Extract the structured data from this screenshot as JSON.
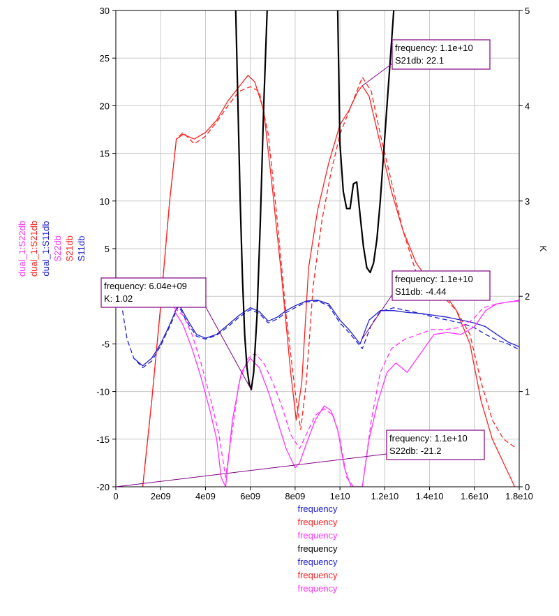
{
  "chart_data": {
    "type": "line",
    "x_axis": {
      "label": "frequency",
      "range": [
        0,
        18000000000
      ],
      "ticks": [
        0,
        2000000000.0,
        4000000000.0,
        6000000000.0,
        8000000000.0,
        10000000000.0,
        12000000000.0,
        14000000000.0,
        16000000000.0,
        18000000000.0
      ],
      "tick_labels": [
        "0",
        "2e09",
        "4e09",
        "6e09",
        "8e09",
        "1e10",
        "1.2e10",
        "1.4e10",
        "1.6e10",
        "1.8e10"
      ]
    },
    "y_left": {
      "range": [
        -20,
        30
      ],
      "ticks": [
        -20,
        -15,
        -10,
        -5,
        0,
        5,
        10,
        15,
        20,
        25,
        30
      ],
      "tick_labels": [
        "-20",
        "-15",
        "-10",
        "-5",
        "0",
        "5",
        "10",
        "15",
        "20",
        "25",
        "30"
      ]
    },
    "y_right": {
      "label": "K",
      "range": [
        0,
        5
      ],
      "ticks": [
        0,
        1,
        2,
        3,
        4,
        5
      ],
      "tick_labels": [
        "0",
        "1",
        "2",
        "3",
        "4",
        "5"
      ]
    },
    "grid": true,
    "left_legend": [
      {
        "name": "dual_1:S22db",
        "color": "#ff33ff"
      },
      {
        "name": "dual_1:S21db",
        "color": "#ff2020"
      },
      {
        "name": "dual_1:S11db",
        "color": "#2020d0"
      },
      {
        "name": "S22db",
        "color": "#ff33ff"
      },
      {
        "name": "S21db",
        "color": "#ff2020"
      },
      {
        "name": "S11db",
        "color": "#2020d0"
      }
    ],
    "x_labels": [
      {
        "text": "frequency",
        "color": "#2020d0"
      },
      {
        "text": "frequency",
        "color": "#ff2020"
      },
      {
        "text": "frequency",
        "color": "#ff33ff"
      },
      {
        "text": "frequency",
        "color": "#000000"
      },
      {
        "text": "frequency",
        "color": "#2020d0"
      },
      {
        "text": "frequency",
        "color": "#ff2020"
      },
      {
        "text": "frequency",
        "color": "#ff33ff"
      }
    ],
    "series": [
      {
        "name": "S21db",
        "axis": "left",
        "color": "#ff2020",
        "dash": false,
        "x": [
          1200000000.0,
          1600000000.0,
          2000000000.0,
          2400000000.0,
          2700000000.0,
          3000000000.0,
          3500000000.0,
          4000000000.0,
          4500000000.0,
          5000000000.0,
          5500000000.0,
          5900000000.0,
          6200000000.0,
          6600000000.0,
          7000000000.0,
          7400000000.0,
          7800000000.0,
          8050000000.0,
          8300000000.0,
          8600000000.0,
          9000000000.0,
          9500000000.0,
          10000000000.0,
          10400000000.0,
          10800000000.0,
          11000000000.0,
          11300000000.0,
          11800000000.0,
          12300000000.0,
          12800000000.0,
          13400000000.0,
          14000000000.0,
          14600000000.0,
          15200000000.0,
          15800000000.0,
          16300000000.0,
          16800000000.0,
          17300000000.0,
          17800000000.0
        ],
        "y": [
          -20,
          -11,
          -1,
          10,
          16.5,
          17,
          16.5,
          17.2,
          18.5,
          20.5,
          22,
          23.2,
          22.5,
          19.5,
          11,
          2,
          -8,
          -13,
          -9,
          3,
          9,
          14,
          18,
          19.5,
          21.5,
          22.1,
          21,
          16,
          11,
          7,
          3.5,
          1.5,
          0.5,
          -1.5,
          -5,
          -11,
          -15,
          -17.5,
          -20
        ]
      },
      {
        "name": "dual_1:S21db",
        "axis": "left",
        "color": "#ff2020",
        "dash": true,
        "x": [
          1200000000.0,
          1600000000.0,
          2000000000.0,
          2400000000.0,
          2700000000.0,
          3000000000.0,
          3500000000.0,
          4000000000.0,
          4500000000.0,
          5000000000.0,
          5500000000.0,
          6000000000.0,
          6400000000.0,
          6800000000.0,
          7200000000.0,
          7600000000.0,
          8000000000.0,
          8250000000.0,
          8500000000.0,
          8800000000.0,
          9200000000.0,
          9600000000.0,
          10000000000.0,
          10500000000.0,
          11000000000.0,
          11400000000.0,
          11800000000.0,
          12300000000.0,
          12800000000.0,
          13400000000.0,
          14000000000.0,
          14600000000.0,
          15200000000.0,
          15800000000.0,
          16300000000.0,
          16800000000.0,
          17300000000.0,
          17900000000.0
        ],
        "y": [
          -20,
          -11,
          -1,
          10,
          16.5,
          17.2,
          16,
          16.8,
          18.3,
          20,
          21.5,
          22,
          21.5,
          17,
          8,
          -2,
          -10,
          -14,
          -9,
          1,
          8,
          13,
          17,
          20,
          23,
          21.5,
          17,
          12,
          7,
          2.5,
          0.5,
          0,
          -1.5,
          -4,
          -9,
          -13,
          -15,
          -16
        ]
      },
      {
        "name": "S11db",
        "axis": "left",
        "color": "#2020d0",
        "dash": false,
        "x": [
          800000000.0,
          1200000000.0,
          1600000000.0,
          2000000000.0,
          2400000000.0,
          2800000000.0,
          3200000000.0,
          3600000000.0,
          4000000000.0,
          4500000000.0,
          5000000000.0,
          5500000000.0,
          6000000000.0,
          6400000000.0,
          6800000000.0,
          7200000000.0,
          7600000000.0,
          8000000000.0,
          8500000000.0,
          9000000000.0,
          9500000000.0,
          10000000000.0,
          10400000000.0,
          10900000000.0,
          11300000000.0,
          11800000000.0,
          12400000000.0,
          13000000000.0,
          13600000000.0,
          14200000000.0,
          14800000000.0,
          15400000000.0,
          16000000000.0,
          16500000000.0,
          17000000000.0,
          17500000000.0,
          18000000000.0
        ],
        "y": [
          -6.5,
          -7.3,
          -6.5,
          -5,
          -3,
          -0.8,
          -2.5,
          -4.0,
          -4.4,
          -4.0,
          -3.0,
          -2.0,
          -1.2,
          -1.6,
          -2.6,
          -2.2,
          -1.5,
          -1.0,
          -0.5,
          -0.4,
          -0.8,
          -2.5,
          -3.5,
          -5.0,
          -2.5,
          -1.5,
          -1.5,
          -1.7,
          -1.8,
          -2.0,
          -2.2,
          -2.5,
          -2.8,
          -3.2,
          -4.0,
          -4.8,
          -5.3
        ]
      },
      {
        "name": "dual_1:S11db",
        "axis": "left",
        "color": "#2020d0",
        "dash": true,
        "x": [
          300000000.0,
          500000000.0,
          800000000.0,
          1200000000.0,
          1600000000.0,
          2000000000.0,
          2400000000.0,
          2800000000.0,
          3200000000.0,
          3600000000.0,
          4000000000.0,
          4500000000.0,
          5000000000.0,
          5500000000.0,
          6000000000.0,
          6400000000.0,
          6800000000.0,
          7200000000.0,
          7600000000.0,
          8000000000.0,
          8500000000.0,
          9000000000.0,
          9500000000.0,
          10000000000.0,
          10400000000.0,
          11000000000.0,
          11400000000.0,
          11800000000.0,
          12400000000.0,
          13000000000.0,
          13600000000.0,
          14200000000.0,
          14800000000.0,
          15400000000.0,
          16000000000.0,
          16500000000.0,
          17000000000.0,
          17500000000.0,
          18000000000.0
        ],
        "y": [
          -1.5,
          -4.5,
          -6.5,
          -7.5,
          -6.8,
          -5.2,
          -3.2,
          -1.0,
          -2.8,
          -4.2,
          -4.5,
          -4.1,
          -3.2,
          -2.2,
          -1.4,
          -1.8,
          -2.8,
          -2.4,
          -1.7,
          -1.2,
          -0.6,
          -0.5,
          -1.0,
          -2.8,
          -3.8,
          -5.5,
          -3.0,
          -1.6,
          -1.2,
          -1.5,
          -1.8,
          -2.2,
          -2.5,
          -2.8,
          -3.3,
          -4.0,
          -4.6,
          -5.0,
          -5.6
        ]
      },
      {
        "name": "S22db",
        "axis": "left",
        "color": "#ff33ff",
        "dash": false,
        "x": [
          2600000000.0,
          3000000000.0,
          3400000000.0,
          3800000000.0,
          4200000000.0,
          4500000000.0,
          4700000000.0,
          4900000000.0,
          5200000000.0,
          5600000000.0,
          6000000000.0,
          6400000000.0,
          6800000000.0,
          7200000000.0,
          7600000000.0,
          8000000000.0,
          8200000000.0,
          8500000000.0,
          8900000000.0,
          9300000000.0,
          9600000000.0,
          9900000000.0,
          10200000000.0,
          10500000000.0,
          10800000000.0,
          11000000000.0,
          11300000000.0,
          11700000000.0,
          12100000000.0,
          12500000000.0,
          13000000000.0,
          13600000000.0,
          14200000000.0,
          14800000000.0,
          15400000000.0,
          16000000000.0,
          16500000000.0,
          17000000000.0,
          17500000000.0,
          18000000000.0
        ],
        "y": [
          -1.5,
          -3,
          -5.5,
          -8.5,
          -12,
          -15,
          -19,
          -20,
          -13,
          -8,
          -6.5,
          -7.5,
          -10,
          -13,
          -16,
          -18,
          -17.5,
          -15.5,
          -13,
          -11.5,
          -12,
          -14,
          -18,
          -20,
          -20,
          -20,
          -15,
          -11,
          -8,
          -7,
          -8,
          -6,
          -4,
          -3.8,
          -4,
          -3.2,
          -1.5,
          -0.8,
          -0.6,
          -0.5
        ]
      },
      {
        "name": "dual_1:S22db",
        "axis": "left",
        "color": "#ff33ff",
        "dash": true,
        "x": [
          2600000000.0,
          3000000000.0,
          3400000000.0,
          3800000000.0,
          4200000000.0,
          4600000000.0,
          4900000000.0,
          5200000000.0,
          5500000000.0,
          5900000000.0,
          6200000000.0,
          6600000000.0,
          7000000000.0,
          7400000000.0,
          7800000000.0,
          8200000000.0,
          8500000000.0,
          8900000000.0,
          9300000000.0,
          9700000000.0,
          10000000000.0,
          10300000000.0,
          10600000000.0,
          11000000000.0,
          11400000000.0,
          11800000000.0,
          12300000000.0,
          12900000000.0,
          13500000000.0,
          14100000000.0,
          14700000000.0,
          15300000000.0,
          15900000000.0,
          16400000000.0,
          17000000000.0,
          17500000000.0,
          18000000000.0
        ],
        "y": [
          -1.2,
          -2,
          -4,
          -7,
          -10.5,
          -14.5,
          -19,
          -14,
          -9,
          -6.5,
          -6,
          -7,
          -9,
          -11.5,
          -14.5,
          -16,
          -14.5,
          -12.5,
          -11.8,
          -12.5,
          -15,
          -19,
          -20,
          -20,
          -13,
          -8,
          -5.5,
          -4.5,
          -4,
          -3.5,
          -3.5,
          -3.3,
          -2.5,
          -1.2,
          -0.8,
          -0.6,
          -0.4
        ]
      },
      {
        "name": "K",
        "axis": "right",
        "color": "#000000",
        "dash": false,
        "x": [
          5350000000.0,
          5450000000.0,
          5550000000.0,
          5650000000.0,
          5750000000.0,
          5850000000.0,
          5950000000.0,
          6040000000.0,
          6150000000.0,
          6300000000.0,
          6450000000.0,
          6600000000.0,
          6750000000.0
        ],
        "y": [
          5.0,
          4.0,
          3.0,
          2.2,
          1.6,
          1.25,
          1.08,
          1.02,
          1.2,
          1.8,
          2.8,
          4.0,
          5.0
        ],
        "x2": [
          9900000000.0,
          10000000000.0,
          10150000000.0,
          10300000000.0,
          10450000000.0,
          10600000000.0,
          10750000000.0,
          10900000000.0,
          11050000000.0,
          11200000000.0,
          11350000000.0,
          11500000000.0,
          11650000000.0,
          11800000000.0,
          11950000000.0,
          12100000000.0,
          12250000000.0,
          12400000000.0
        ],
        "y2": [
          5.0,
          3.6,
          3.1,
          2.92,
          2.92,
          3.18,
          3.2,
          2.85,
          2.52,
          2.3,
          2.25,
          2.35,
          2.6,
          3.0,
          3.5,
          4.0,
          4.5,
          5.0
        ]
      }
    ],
    "annotations": [
      {
        "id": "s21",
        "lines": [
          "frequency: 1.1e+10",
          "S21db: 22.1"
        ],
        "color": "#800080",
        "pointer_x": 11000000000.0,
        "pointer_y": 22.1,
        "pointer_axis": "left"
      },
      {
        "id": "s11",
        "lines": [
          "frequency: 1.1e+10",
          "S11db: -4.44"
        ],
        "color": "#800080",
        "pointer_x": 11000000000.0,
        "pointer_y": -4.44,
        "pointer_axis": "left"
      },
      {
        "id": "k",
        "lines": [
          "frequency: 6.04e+09",
          "K: 1.02"
        ],
        "color": "#800080",
        "pointer_x": 6040000000.0,
        "pointer_y": 1.02,
        "pointer_axis": "right"
      },
      {
        "id": "s22",
        "lines": [
          "frequency: 1.1e+10",
          "S22db: -21.2"
        ],
        "color": "#800080",
        "pointer_x": 0,
        "pointer_y": -20,
        "pointer_axis": "left"
      }
    ]
  }
}
